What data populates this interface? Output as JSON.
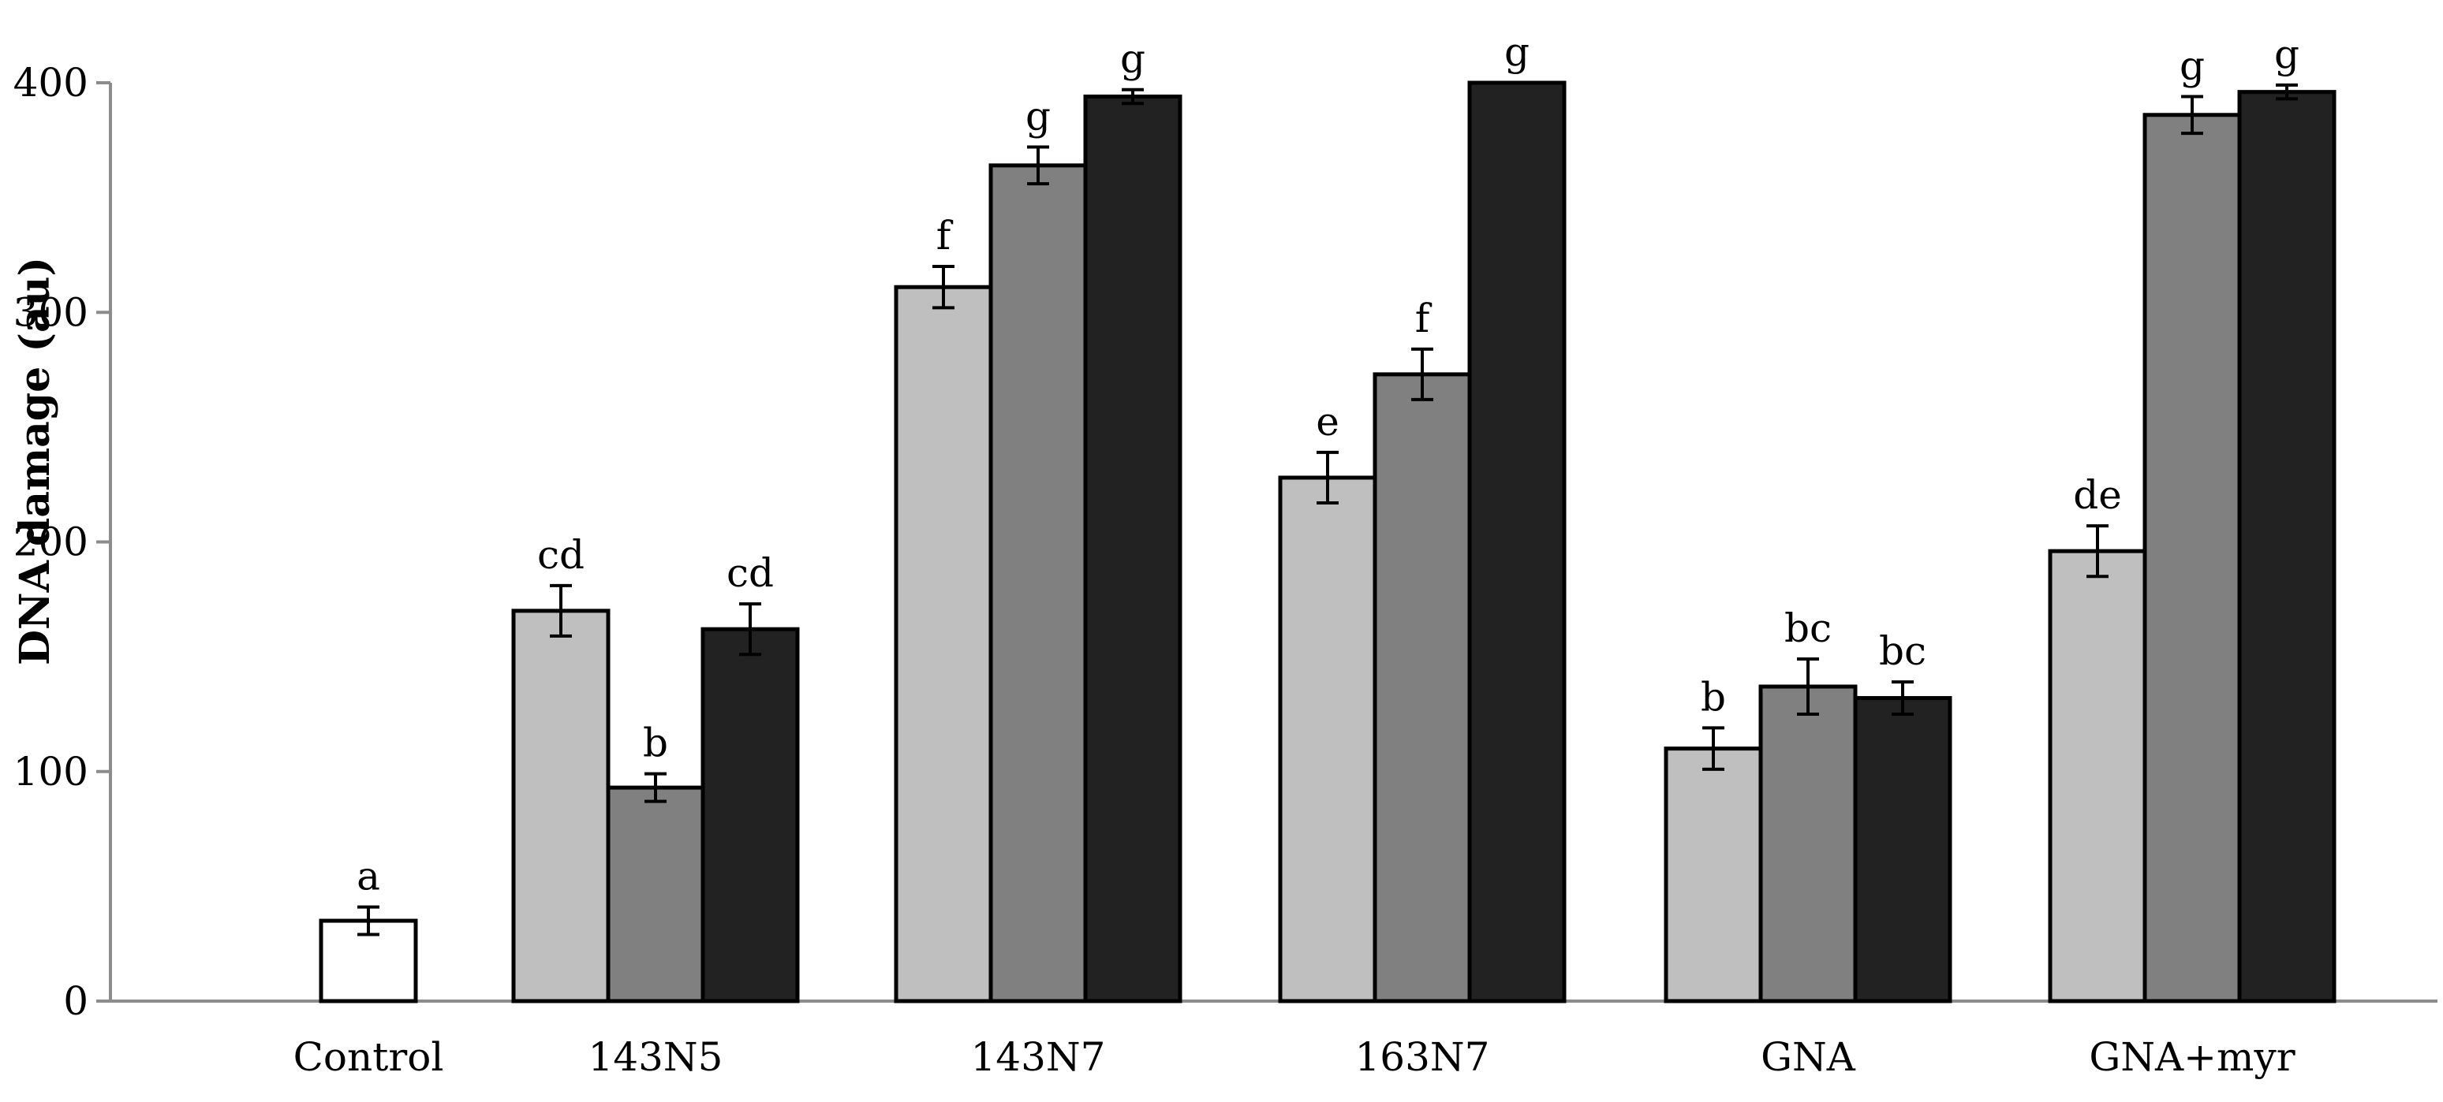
{
  "chart_data": {
    "type": "bar",
    "title": "",
    "xlabel": "",
    "ylabel": "DNA damage (au)",
    "ylim": [
      0,
      400
    ],
    "yticks": [
      "0",
      "100",
      "200",
      "300",
      "400"
    ],
    "grid": false,
    "legend": "none",
    "error_bars": true,
    "colors": {
      "control": "#ffffff",
      "series1": "#bfbfbf",
      "series2": "#808080",
      "series3": "#222222",
      "outline": "#000000",
      "axis": "#8c8c8c"
    },
    "groups": [
      {
        "category": "Control",
        "bars": [
          {
            "value": 35,
            "error": 6,
            "letter": "a",
            "fill": "control"
          }
        ]
      },
      {
        "category": "143N5",
        "bars": [
          {
            "value": 170,
            "error": 11,
            "letter": "cd",
            "fill": "series1"
          },
          {
            "value": 93,
            "error": 6,
            "letter": "b",
            "fill": "series2"
          },
          {
            "value": 162,
            "error": 11,
            "letter": "cd",
            "fill": "series3"
          }
        ]
      },
      {
        "category": "143N7",
        "bars": [
          {
            "value": 311,
            "error": 9,
            "letter": "f",
            "fill": "series1"
          },
          {
            "value": 364,
            "error": 8,
            "letter": "g",
            "fill": "series2"
          },
          {
            "value": 394,
            "error": 3,
            "letter": "g",
            "fill": "series3"
          }
        ]
      },
      {
        "category": "163N7",
        "bars": [
          {
            "value": 228,
            "error": 11,
            "letter": "e",
            "fill": "series1"
          },
          {
            "value": 273,
            "error": 11,
            "letter": "f",
            "fill": "series2"
          },
          {
            "value": 400,
            "error": 0,
            "letter": "g",
            "fill": "series3"
          }
        ]
      },
      {
        "category": "GNA",
        "bars": [
          {
            "value": 110,
            "error": 9,
            "letter": "b",
            "fill": "series1"
          },
          {
            "value": 137,
            "error": 12,
            "letter": "bc",
            "fill": "series2"
          },
          {
            "value": 132,
            "error": 7,
            "letter": "bc",
            "fill": "series3"
          }
        ]
      },
      {
        "category": "GNA+myr",
        "bars": [
          {
            "value": 196,
            "error": 11,
            "letter": "de",
            "fill": "series1"
          },
          {
            "value": 386,
            "error": 8,
            "letter": "g",
            "fill": "series2"
          },
          {
            "value": 396,
            "error": 3,
            "letter": "g",
            "fill": "series3"
          }
        ]
      }
    ]
  }
}
